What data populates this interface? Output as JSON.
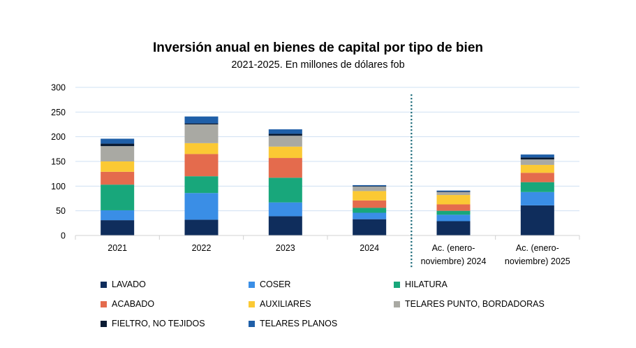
{
  "chart_data": {
    "type": "bar",
    "stacked": true,
    "title": "Inversión anual en bienes de capital por tipo de bien",
    "subtitle": "2021-2025. En millones de dólares fob",
    "xlabel": "",
    "ylabel": "",
    "ylim": [
      0,
      300
    ],
    "yticks": [
      "0",
      "50",
      "100",
      "150",
      "200",
      "250",
      "300"
    ],
    "grid": true,
    "separator_after_category": "2024",
    "categories": [
      [
        "2021"
      ],
      [
        "2022"
      ],
      [
        "2023"
      ],
      [
        "2024"
      ],
      [
        "Ac. (enero-",
        "noviembre) 2024"
      ],
      [
        "Ac. (enero-",
        "noviembre) 2025"
      ]
    ],
    "series": [
      {
        "name": "LAVADO",
        "color": "#0f2d5c",
        "values": [
          31,
          32,
          39,
          33,
          29,
          61
        ]
      },
      {
        "name": "COSER",
        "color": "#3a8ee6",
        "values": [
          20,
          54,
          28,
          13,
          13,
          27
        ]
      },
      {
        "name": "HILATURA",
        "color": "#18a77b",
        "values": [
          52,
          34,
          50,
          10,
          8,
          20
        ]
      },
      {
        "name": "ACABADO",
        "color": "#e46b4d",
        "values": [
          26,
          45,
          40,
          15,
          13,
          19
        ]
      },
      {
        "name": "AUXILIARES",
        "color": "#fbc934",
        "values": [
          21,
          22,
          23,
          19,
          19,
          16
        ]
      },
      {
        "name": "TELARES PUNTO, BORDADORAS",
        "color": "#a9a9a3",
        "values": [
          31,
          38,
          22,
          9,
          6,
          11
        ]
      },
      {
        "name": "FIELTRO, NO TEJIDOS",
        "color": "#0a1b33",
        "values": [
          5,
          2,
          4,
          1,
          1,
          4
        ]
      },
      {
        "name": "TELARES PLANOS",
        "color": "#1f5fa8",
        "values": [
          10,
          14,
          9,
          2,
          2,
          6
        ]
      }
    ],
    "legend_position": "bottom"
  }
}
